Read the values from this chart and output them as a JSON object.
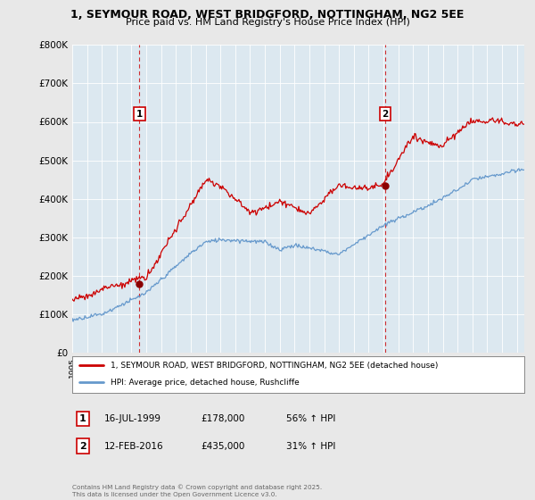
{
  "title_line1": "1, SEYMOUR ROAD, WEST BRIDGFORD, NOTTINGHAM, NG2 5EE",
  "title_line2": "Price paid vs. HM Land Registry's House Price Index (HPI)",
  "ylim": [
    0,
    800000
  ],
  "yticks": [
    0,
    100000,
    200000,
    300000,
    400000,
    500000,
    600000,
    700000,
    800000
  ],
  "ytick_labels": [
    "£0",
    "£100K",
    "£200K",
    "£300K",
    "£400K",
    "£500K",
    "£600K",
    "£700K",
    "£800K"
  ],
  "background_color": "#e8e8e8",
  "plot_bg_color": "#dce8f0",
  "grid_color": "#ffffff",
  "line1_color": "#cc0000",
  "line2_color": "#6699cc",
  "purchase1_date": 1999.54,
  "purchase1_price": 178000,
  "purchase2_date": 2016.11,
  "purchase2_price": 435000,
  "dashed_line_color": "#cc0000",
  "legend_label1": "1, SEYMOUR ROAD, WEST BRIDGFORD, NOTTINGHAM, NG2 5EE (detached house)",
  "legend_label2": "HPI: Average price, detached house, Rushcliffe",
  "table_row1": [
    "1",
    "16-JUL-1999",
    "£178,000",
    "56% ↑ HPI"
  ],
  "table_row2": [
    "2",
    "12-FEB-2016",
    "£435,000",
    "31% ↑ HPI"
  ],
  "footer": "Contains HM Land Registry data © Crown copyright and database right 2025.\nThis data is licensed under the Open Government Licence v3.0.",
  "xmin": 1995.0,
  "xmax": 2025.5
}
